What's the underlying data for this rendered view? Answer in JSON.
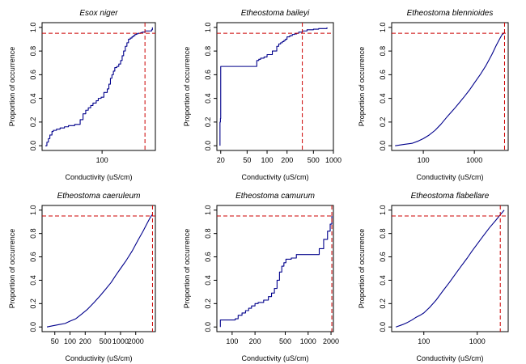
{
  "figure": {
    "threshold_color": "#cc0000",
    "line_color": "#00008b",
    "frame_color": "#000000"
  },
  "chart_data": [
    {
      "type": "line",
      "step": true,
      "title": "Esox niger",
      "xlabel": "Conductivity (uS/cm)",
      "ylabel": "Proportion of occurrence",
      "xscale": "log",
      "xlim": [
        27,
        320
      ],
      "ylim": [
        -0.04,
        1.04
      ],
      "xticks": [
        100
      ],
      "xticklabels": [
        "100"
      ],
      "yticks": [
        0,
        0.2,
        0.4,
        0.6,
        0.8,
        1.0
      ],
      "yticklabels": [
        "0.0",
        "0.2",
        "0.4",
        "0.6",
        "0.8",
        "1.0"
      ],
      "grid": false,
      "hline": 0.95,
      "vline": 255,
      "x": [
        29,
        30,
        31,
        32,
        33.5,
        34.5,
        37,
        40,
        44,
        48,
        55,
        62,
        66,
        70,
        74,
        78,
        82,
        88,
        92,
        98,
        104,
        112,
        116,
        120,
        124,
        128,
        132,
        138,
        144,
        150,
        155,
        160,
        166,
        172,
        178,
        185,
        192,
        198,
        205,
        212,
        218,
        225,
        232,
        240,
        255,
        270,
        295,
        300
      ],
      "y": [
        0,
        0.03,
        0.06,
        0.09,
        0.12,
        0.13,
        0.14,
        0.15,
        0.16,
        0.17,
        0.18,
        0.22,
        0.27,
        0.3,
        0.32,
        0.34,
        0.36,
        0.38,
        0.4,
        0.41,
        0.45,
        0.48,
        0.52,
        0.57,
        0.6,
        0.63,
        0.66,
        0.67,
        0.69,
        0.72,
        0.76,
        0.8,
        0.84,
        0.87,
        0.9,
        0.91,
        0.92,
        0.93,
        0.94,
        0.945,
        0.95,
        0.95,
        0.955,
        0.96,
        0.97,
        0.97,
        0.98,
        1.0
      ]
    },
    {
      "type": "line",
      "step": true,
      "title": "Etheostoma baileyi",
      "xlabel": "Conductivity (uS/cm)",
      "ylabel": "Proportion of occurrence",
      "xscale": "log",
      "xlim": [
        17.5,
        1000
      ],
      "ylim": [
        -0.04,
        1.04
      ],
      "xticks": [
        20,
        50,
        100,
        200,
        500,
        1000
      ],
      "xticklabels": [
        "20",
        "50",
        "100",
        "200",
        "500",
        "1000"
      ],
      "yticks": [
        0,
        0.2,
        0.4,
        0.6,
        0.8,
        1.0
      ],
      "yticklabels": [
        "0.0",
        "0.2",
        "0.4",
        "0.6",
        "0.8",
        "1.0"
      ],
      "grid": false,
      "hline": 0.95,
      "vline": 340,
      "x": [
        19.5,
        19.5,
        19.8,
        20,
        70,
        75,
        80,
        90,
        100,
        120,
        140,
        150,
        160,
        170,
        180,
        190,
        200,
        220,
        240,
        260,
        280,
        300,
        340,
        400,
        500,
        600,
        800
      ],
      "y": [
        0,
        0.2,
        0.23,
        0.67,
        0.72,
        0.73,
        0.74,
        0.75,
        0.77,
        0.8,
        0.84,
        0.86,
        0.87,
        0.88,
        0.89,
        0.9,
        0.92,
        0.93,
        0.94,
        0.945,
        0.95,
        0.96,
        0.97,
        0.98,
        0.985,
        0.99,
        1.0
      ]
    },
    {
      "type": "line",
      "step": false,
      "title": "Etheostoma blennioides",
      "xlabel": "Conductivity (uS/cm)",
      "ylabel": "Proportion of occurrence",
      "xscale": "log",
      "xlim": [
        24,
        4600
      ],
      "ylim": [
        -0.04,
        1.04
      ],
      "xticks": [
        100,
        1000
      ],
      "xticklabels": [
        "100",
        "1000"
      ],
      "yticks": [
        0,
        0.2,
        0.4,
        0.6,
        0.8,
        1.0
      ],
      "yticklabels": [
        "0.0",
        "0.2",
        "0.4",
        "0.6",
        "0.8",
        "1.0"
      ],
      "grid": false,
      "hline": 0.95,
      "vline": 3900,
      "x": [
        28,
        40,
        60,
        80,
        100,
        130,
        170,
        220,
        300,
        400,
        500,
        650,
        800,
        1000,
        1300,
        1700,
        2200,
        2700,
        3200,
        3500,
        3800,
        3900
      ],
      "y": [
        0,
        0.01,
        0.02,
        0.04,
        0.06,
        0.09,
        0.13,
        0.18,
        0.25,
        0.31,
        0.36,
        0.42,
        0.47,
        0.53,
        0.6,
        0.68,
        0.77,
        0.85,
        0.91,
        0.94,
        0.95,
        0.96
      ]
    },
    {
      "type": "line",
      "step": false,
      "title": "Etheostoma caeruleum",
      "xlabel": "Conductivity (uS/cm)",
      "ylabel": "Proportion of occurrence",
      "xscale": "log",
      "xlim": [
        28,
        4900
      ],
      "ylim": [
        -0.04,
        1.04
      ],
      "xticks": [
        50,
        100,
        200,
        500,
        1000,
        2000
      ],
      "xticklabels": [
        "50",
        "100",
        "200",
        "500",
        "1000",
        "2000"
      ],
      "yticks": [
        0,
        0.2,
        0.4,
        0.6,
        0.8,
        1.0
      ],
      "yticklabels": [
        "0.0",
        "0.2",
        "0.4",
        "0.6",
        "0.8",
        "1.0"
      ],
      "grid": false,
      "hline": 0.95,
      "vline": 4300,
      "x": [
        35,
        45,
        60,
        80,
        100,
        130,
        170,
        220,
        300,
        400,
        500,
        650,
        800,
        1000,
        1300,
        1700,
        2200,
        2800,
        3300,
        3800,
        4200
      ],
      "y": [
        0,
        0.01,
        0.02,
        0.03,
        0.05,
        0.07,
        0.11,
        0.15,
        0.21,
        0.27,
        0.32,
        0.38,
        0.44,
        0.5,
        0.57,
        0.65,
        0.74,
        0.82,
        0.88,
        0.93,
        0.96
      ]
    },
    {
      "type": "line",
      "step": true,
      "title": "Etheostoma camurum",
      "xlabel": "Conductivity (uS/cm)",
      "ylabel": "Proportion of occurrence",
      "xscale": "log",
      "xlim": [
        63,
        2150
      ],
      "ylim": [
        -0.04,
        1.04
      ],
      "xticks": [
        100,
        200,
        500,
        1000,
        2000
      ],
      "xticklabels": [
        "100",
        "200",
        "500",
        "1000",
        "2000"
      ],
      "yticks": [
        0,
        0.2,
        0.4,
        0.6,
        0.8,
        1.0
      ],
      "yticklabels": [
        "0.0",
        "0.2",
        "0.4",
        "0.6",
        "0.8",
        "1.0"
      ],
      "grid": false,
      "hline": 0.95,
      "vline": 2050,
      "x": [
        70,
        70,
        110,
        120,
        135,
        150,
        165,
        180,
        200,
        220,
        260,
        300,
        330,
        360,
        390,
        420,
        450,
        480,
        510,
        600,
        700,
        1000,
        1400,
        1600,
        1800,
        1950,
        2050
      ],
      "y": [
        0,
        0.06,
        0.07,
        0.1,
        0.12,
        0.14,
        0.16,
        0.18,
        0.2,
        0.21,
        0.23,
        0.26,
        0.29,
        0.33,
        0.4,
        0.47,
        0.52,
        0.55,
        0.58,
        0.59,
        0.62,
        0.62,
        0.67,
        0.75,
        0.82,
        0.88,
        0.95
      ]
    },
    {
      "type": "line",
      "step": false,
      "title": "Etheostoma flabellare",
      "xlabel": "Conductivity (uS/cm)",
      "ylabel": "Proportion of occurrence",
      "xscale": "log",
      "xlim": [
        25,
        3800
      ],
      "ylim": [
        -0.04,
        1.04
      ],
      "xticks": [
        100,
        1000
      ],
      "xticklabels": [
        "100",
        "1000"
      ],
      "yticks": [
        0,
        0.2,
        0.4,
        0.6,
        0.8,
        1.0
      ],
      "yticklabels": [
        "0.0",
        "0.2",
        "0.4",
        "0.6",
        "0.8",
        "1.0"
      ],
      "grid": false,
      "hline": 0.95,
      "vline": 2700,
      "x": [
        30,
        40,
        50,
        60,
        70,
        85,
        100,
        130,
        170,
        220,
        300,
        400,
        500,
        650,
        800,
        1000,
        1300,
        1700,
        2200,
        2700,
        3200
      ],
      "y": [
        0,
        0.02,
        0.04,
        0.06,
        0.08,
        0.1,
        0.12,
        0.17,
        0.23,
        0.3,
        0.38,
        0.46,
        0.52,
        0.59,
        0.65,
        0.71,
        0.78,
        0.85,
        0.91,
        0.96,
        1.0
      ]
    }
  ]
}
